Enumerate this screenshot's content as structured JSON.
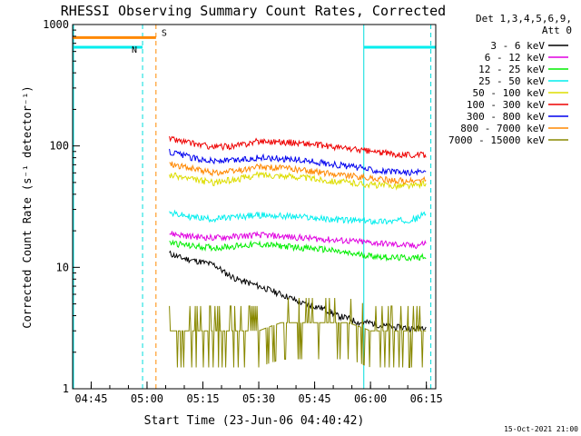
{
  "chart_data": {
    "type": "line",
    "title": "RHESSI Observing Summary Count Rates, Corrected",
    "xlabel": "Start Time (23-Jun-06 04:40:42)",
    "ylabel": "Corrected Count Rate (s⁻¹ detector⁻¹)",
    "yscale": "log",
    "ylim": [
      1,
      1000
    ],
    "xlim": [
      4.667,
      6.292
    ],
    "x_ticks": [
      "04:45",
      "05:00",
      "05:15",
      "05:30",
      "05:45",
      "06:00",
      "06:15"
    ],
    "y_ticks": [
      "1",
      "10",
      "100",
      "1000"
    ],
    "legend_header": [
      "Det 1,3,4,5,6,9,",
      "Att 0"
    ],
    "legend_placement": "right",
    "timestamp": "15-Oct-2021 21:00",
    "series": [
      {
        "name": "3 - 6 keV",
        "color": "#000000",
        "x": [
          5.1,
          5.15,
          5.2,
          5.25,
          5.3,
          5.35,
          5.4,
          5.45,
          5.5,
          5.55,
          5.6,
          5.65,
          5.7,
          5.75,
          5.8,
          5.85,
          5.9,
          5.95,
          6.0,
          6.05,
          6.1,
          6.15,
          6.2,
          6.25
        ],
        "y": [
          13,
          12,
          11.5,
          11,
          10.5,
          9,
          8,
          7.5,
          7,
          6.5,
          6,
          5.5,
          5,
          4.8,
          4.5,
          4,
          3.8,
          3.5,
          3.5,
          3.3,
          3.2,
          3.2,
          3.1,
          3.3
        ]
      },
      {
        "name": "6 - 12 keV",
        "color": "#e000e0",
        "x": [
          5.1,
          5.2,
          5.3,
          5.4,
          5.5,
          5.6,
          5.7,
          5.8,
          5.9,
          6.0,
          6.1,
          6.2,
          6.25
        ],
        "y": [
          19,
          18,
          17.5,
          18,
          18.5,
          18,
          17.5,
          17,
          16.5,
          16,
          15.5,
          15,
          16
        ]
      },
      {
        "name": "12 - 25 keV",
        "color": "#00ee00",
        "x": [
          5.1,
          5.2,
          5.3,
          5.4,
          5.5,
          5.6,
          5.7,
          5.8,
          5.9,
          6.0,
          6.1,
          6.2,
          6.25
        ],
        "y": [
          16,
          15,
          14.5,
          15,
          15.5,
          15,
          14.5,
          14,
          13,
          12.5,
          12,
          12,
          12.5
        ]
      },
      {
        "name": "25 - 50 keV",
        "color": "#00eeee",
        "x": [
          5.1,
          5.2,
          5.3,
          5.4,
          5.5,
          5.6,
          5.7,
          5.8,
          5.9,
          6.0,
          6.1,
          6.2,
          6.25
        ],
        "y": [
          28,
          26,
          25,
          26,
          27,
          26.5,
          26,
          25,
          24.5,
          24,
          24,
          25,
          28
        ]
      },
      {
        "name": "50 - 100 keV",
        "color": "#dddd00",
        "x": [
          5.1,
          5.2,
          5.3,
          5.4,
          5.5,
          5.6,
          5.7,
          5.8,
          5.9,
          6.0,
          6.1,
          6.2,
          6.25
        ],
        "y": [
          58,
          53,
          50,
          53,
          58,
          57,
          55,
          52,
          50,
          48,
          47,
          47,
          50
        ]
      },
      {
        "name": "100 - 300 keV",
        "color": "#ee0000",
        "x": [
          5.1,
          5.2,
          5.3,
          5.4,
          5.5,
          5.6,
          5.7,
          5.8,
          5.9,
          6.0,
          6.1,
          6.2,
          6.25
        ],
        "y": [
          115,
          105,
          98,
          100,
          110,
          108,
          105,
          100,
          95,
          90,
          86,
          84,
          85
        ]
      },
      {
        "name": "300 - 800 keV",
        "color": "#0000ee",
        "x": [
          5.1,
          5.2,
          5.3,
          5.4,
          5.5,
          5.6,
          5.7,
          5.8,
          5.9,
          6.0,
          6.1,
          6.2,
          6.25
        ],
        "y": [
          90,
          80,
          75,
          76,
          80,
          79,
          76,
          72,
          68,
          64,
          61,
          60,
          62
        ]
      },
      {
        "name": "800 - 7000 keV",
        "color": "#ff8800",
        "x": [
          5.1,
          5.2,
          5.3,
          5.4,
          5.5,
          5.6,
          5.7,
          5.8,
          5.9,
          6.0,
          6.1,
          6.2,
          6.25
        ],
        "y": [
          72,
          65,
          60,
          62,
          67,
          66,
          63,
          60,
          57,
          54,
          52,
          51,
          53
        ]
      },
      {
        "name": "7000 - 15000 keV",
        "color": "#888800",
        "x": [
          5.1,
          5.2,
          5.3,
          5.4,
          5.5,
          5.6,
          5.7,
          5.8,
          5.9,
          6.0,
          6.1,
          6.2,
          6.25
        ],
        "y": [
          3,
          3,
          3,
          3,
          3,
          3.5,
          3.5,
          3.5,
          3.5,
          3,
          3,
          3,
          3
        ]
      }
    ],
    "annotations": [
      {
        "label": "S",
        "color": "#ff8800",
        "x_start": 4.667,
        "x_end": 5.04,
        "y": 780
      },
      {
        "label": "N",
        "color": "#00eeee",
        "x_start": 4.667,
        "x_end": 4.98,
        "y": 650
      },
      {
        "label": "",
        "color": "#00eeee",
        "x_start": 5.97,
        "x_end": 6.292,
        "y": 650
      }
    ]
  }
}
